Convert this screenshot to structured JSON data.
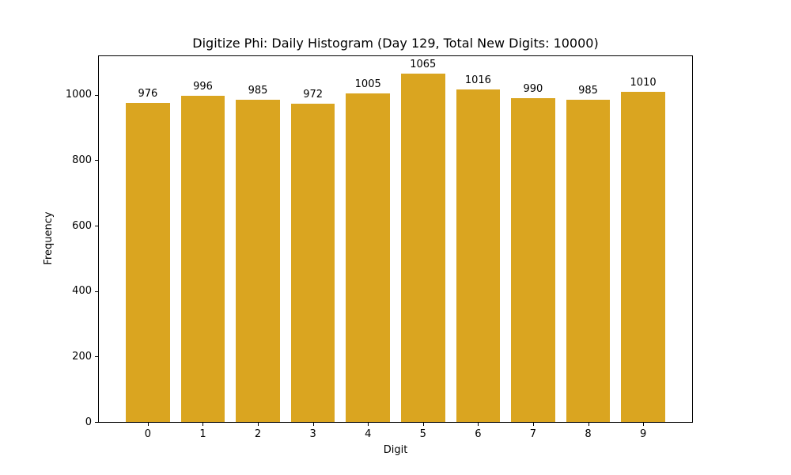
{
  "chart_data": {
    "type": "bar",
    "title": "Digitize Phi: Daily Histogram (Day 129, Total New Digits: 10000)",
    "xlabel": "Digit",
    "ylabel": "Frequency",
    "categories": [
      "0",
      "1",
      "2",
      "3",
      "4",
      "5",
      "6",
      "7",
      "8",
      "9"
    ],
    "values": [
      976,
      996,
      985,
      972,
      1005,
      1065,
      1016,
      990,
      985,
      1010
    ],
    "bar_value_labels": [
      "976",
      "996",
      "985",
      "972",
      "1005",
      "1065",
      "1016",
      "990",
      "985",
      "1010"
    ],
    "yticks": [
      0,
      200,
      400,
      600,
      800,
      1000
    ],
    "ylim": [
      0,
      1118
    ],
    "xlim_category_units": [
      -0.89,
      9.89
    ],
    "bar_width_fraction": 0.8,
    "bar_color": "#DAA520",
    "grid": false,
    "legend": "none"
  }
}
